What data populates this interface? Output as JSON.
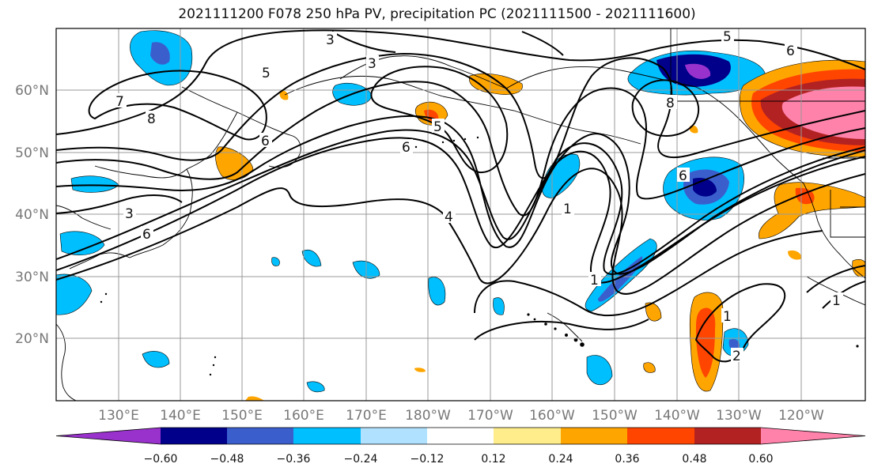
{
  "title": "2021111200 F078 250 hPa PV, precipitation PC (2021111500 - 2021111600)",
  "longitude_labels": [
    "130°E",
    "140°E",
    "150°E",
    "160°E",
    "170°E",
    "180°W",
    "170°W",
    "160°W",
    "150°W",
    "140°W",
    "130°W",
    "120°W"
  ],
  "latitude_labels": [
    "60°N",
    "50°N",
    "40°N",
    "30°N",
    "20°N"
  ],
  "contour_labels": [
    "3",
    "5",
    "7",
    "8",
    "6",
    "5",
    "3",
    "6",
    "8",
    "6",
    "4",
    "1",
    "1",
    "1",
    "3",
    "6",
    "1",
    "2",
    "5",
    "6"
  ],
  "colorbar": {
    "ticks": [
      "−0.60",
      "−0.48",
      "−0.36",
      "−0.24",
      "−0.12",
      "0.12",
      "0.24",
      "0.36",
      "0.48",
      "0.60"
    ],
    "colors": [
      "#9932cc",
      "#00008b",
      "#3a5fcd",
      "#00bfff",
      "#b0e2ff",
      "#ffffff",
      "#ffec8b",
      "#ffa500",
      "#ff4500",
      "#b22222",
      "#ff82ab"
    ]
  }
}
